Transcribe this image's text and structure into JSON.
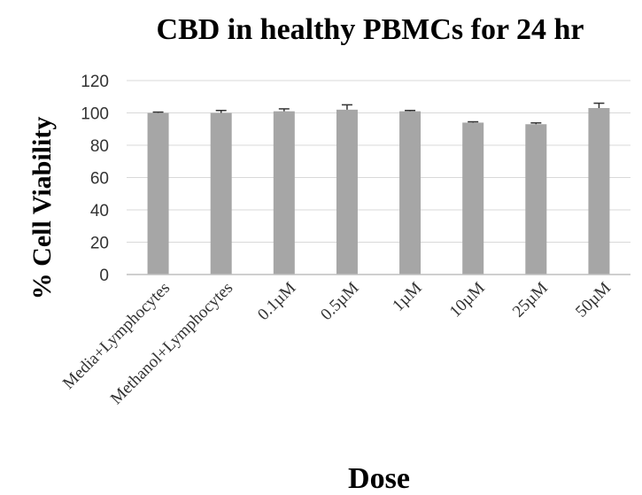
{
  "chart_data": {
    "type": "bar",
    "title": "CBD in healthy PBMCs for 24 hr",
    "xlabel": "Dose",
    "ylabel": "% Cell Viability",
    "ylim": [
      0,
      120
    ],
    "yticks": [
      0,
      20,
      40,
      60,
      80,
      100,
      120
    ],
    "grid": true,
    "categories": [
      "Media+Lymphocytes",
      "Methanol+Lymphocytes",
      "0.1µM",
      "0.5µM",
      "1µM",
      "10µM",
      "25µM",
      "50µM"
    ],
    "values": [
      100,
      100,
      101,
      102,
      101,
      94,
      93,
      103
    ],
    "error": [
      0.5,
      1.5,
      1.5,
      3,
      0.5,
      0.5,
      0.8,
      3
    ],
    "colors": {
      "bar": "#a6a6a6",
      "grid": "#d9d9d9",
      "axis": "#bfbfbf",
      "errorbar": "#333333"
    }
  }
}
